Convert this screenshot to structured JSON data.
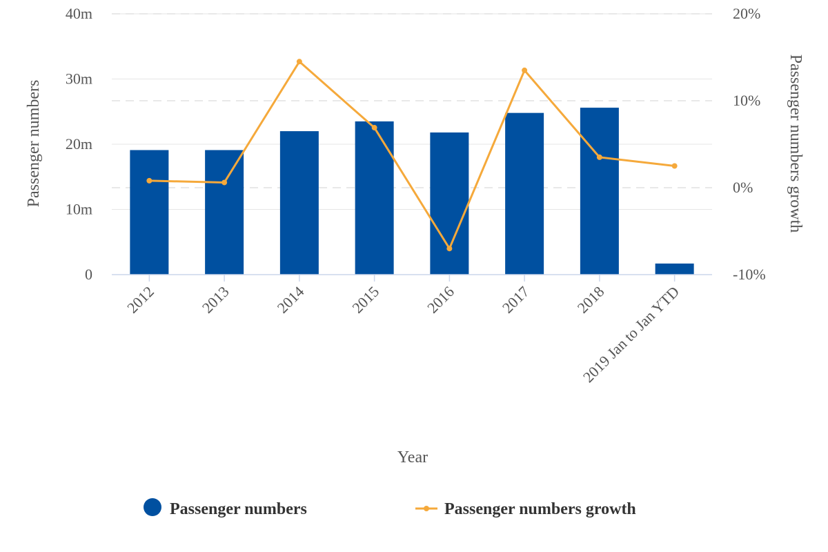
{
  "chart_data": {
    "type": "bar",
    "categories": [
      "2012",
      "2013",
      "2014",
      "2015",
      "2016",
      "2017",
      "2018",
      "2019 Jan to Jan YTD"
    ],
    "series": [
      {
        "name": "Passenger numbers",
        "type": "bar",
        "axis": "left",
        "color": "#0050a0",
        "values": [
          19.1,
          19.1,
          22.0,
          23.5,
          21.8,
          24.8,
          25.6,
          1.7
        ]
      },
      {
        "name": "Passenger numbers growth",
        "type": "line",
        "axis": "right",
        "color": "#f5a93b",
        "values": [
          0.8,
          0.6,
          14.5,
          6.9,
          -7.0,
          13.5,
          3.5,
          2.5
        ]
      }
    ],
    "xlabel": "Year",
    "ylabel": "Passenger numbers",
    "ylabel_right": "Passenger numbers growth",
    "ylim": [
      0,
      40
    ],
    "ylim_right": [
      -10,
      20
    ],
    "yticks": [
      0,
      10,
      20,
      30,
      40
    ],
    "ytick_labels": [
      "0",
      "10m",
      "20m",
      "30m",
      "40m"
    ],
    "yticks_right": [
      -10,
      0,
      10,
      20
    ],
    "ytick_labels_right": [
      "-10%",
      "0%",
      "10%",
      "20%"
    ],
    "grid": true,
    "legend_position": "bottom"
  }
}
